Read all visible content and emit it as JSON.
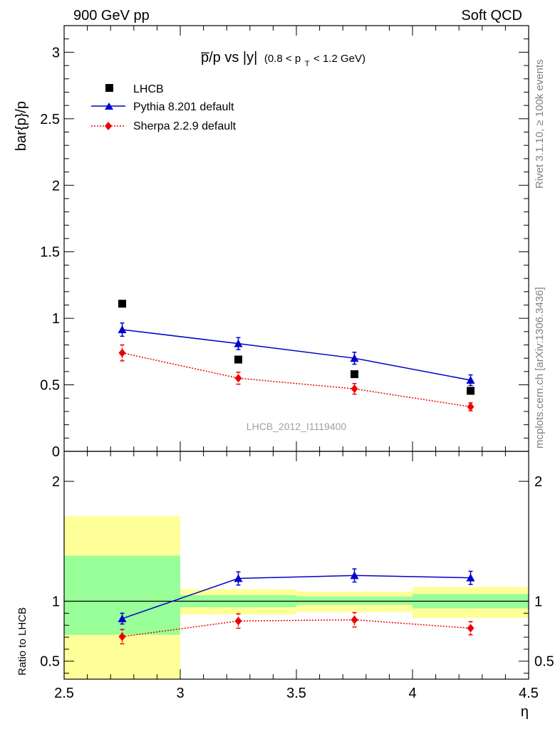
{
  "header": {
    "left": "900 GeV pp",
    "right": "Soft QCD"
  },
  "side": {
    "rivet": "Rivet 3.1.10, ≥ 100k events",
    "mcplots": "mcplots.cern.ch [arXiv:1306.3436]"
  },
  "chart_data": [
    {
      "type": "scatter",
      "title": "p̅/p vs |y|",
      "title_main": "p̅/p vs |y|",
      "title_cut_pre": "(0.8 < p",
      "title_cut_sub": "T",
      "title_cut_post": " < 1.2 GeV)",
      "ylabel": "bar{p}/p",
      "xlabel": "η",
      "xlim": [
        2.5,
        4.5
      ],
      "ylim": [
        0,
        3.2
      ],
      "yticks": [
        {
          "v": 0.5,
          "t": "0.5"
        },
        {
          "v": 1,
          "t": "1"
        },
        {
          "v": 1.5,
          "t": "1.5"
        },
        {
          "v": 2,
          "t": "2"
        },
        {
          "v": 2.5,
          "t": "2.5"
        },
        {
          "v": 3,
          "t": "3"
        },
        {
          "v": 0,
          "t": "0"
        }
      ],
      "watermark": "LHCB_2012_I1119400",
      "legend_position": "top-left",
      "series": [
        {
          "name": "LHCB",
          "color": "#000000",
          "marker": "square",
          "line": "none",
          "x": [
            2.75,
            3.25,
            3.75,
            4.25
          ],
          "y": [
            1.11,
            0.69,
            0.58,
            0.455
          ],
          "err": [
            0.01,
            0.01,
            0.01,
            0.01
          ]
        },
        {
          "name": "Pythia 8.201 default",
          "color": "#0000cc",
          "marker": "triangle",
          "line": "solid",
          "x": [
            2.75,
            3.25,
            3.75,
            4.25
          ],
          "y": [
            0.915,
            0.81,
            0.7,
            0.535
          ],
          "err": [
            0.05,
            0.045,
            0.045,
            0.04
          ]
        },
        {
          "name": "Sherpa 2.2.9 default",
          "color": "#ee0000",
          "marker": "diamond",
          "line": "dotted",
          "x": [
            2.75,
            3.25,
            3.75,
            4.25
          ],
          "y": [
            0.74,
            0.55,
            0.47,
            0.335
          ],
          "err": [
            0.06,
            0.045,
            0.04,
            0.03
          ]
        }
      ]
    },
    {
      "type": "scatter",
      "ylabel": "Ratio to LHCB",
      "xlabel": "η",
      "xlim": [
        2.5,
        4.5
      ],
      "ylim": [
        0.35,
        2.25
      ],
      "xticks": [
        {
          "v": 2.5,
          "t": "2.5"
        },
        {
          "v": 3,
          "t": "3"
        },
        {
          "v": 3.5,
          "t": "3.5"
        },
        {
          "v": 4,
          "t": "4"
        },
        {
          "v": 4.5,
          "t": "4.5"
        }
      ],
      "yticks": [
        {
          "v": 0.5,
          "t": "0.5"
        },
        {
          "v": 1,
          "t": "1"
        },
        {
          "v": 2,
          "t": "2"
        }
      ],
      "bands": [
        {
          "x0": 2.5,
          "x1": 3.0,
          "y_lo": 0.72,
          "y_hi": 1.38,
          "y2_lo": 0.35,
          "y2_hi": 1.71
        },
        {
          "x0": 3.0,
          "x1": 3.5,
          "y_lo": 0.95,
          "y_hi": 1.05,
          "y2_lo": 0.89,
          "y2_hi": 1.1
        },
        {
          "x0": 3.5,
          "x1": 4.0,
          "y_lo": 0.97,
          "y_hi": 1.04,
          "y2_lo": 0.91,
          "y2_hi": 1.08
        },
        {
          "x0": 4.0,
          "x1": 4.5,
          "y_lo": 0.94,
          "y_hi": 1.06,
          "y2_lo": 0.86,
          "y2_hi": 1.12
        }
      ],
      "band_colors": {
        "inner": "#99ff99",
        "outer": "#ffff99"
      },
      "series": [
        {
          "name": "Pythia 8.201 default",
          "color": "#0000cc",
          "marker": "triangle",
          "line": "solid",
          "x": [
            2.75,
            3.25,
            3.75,
            4.25
          ],
          "y": [
            0.855,
            1.19,
            1.215,
            1.195
          ],
          "err": [
            0.045,
            0.055,
            0.055,
            0.055
          ]
        },
        {
          "name": "Sherpa 2.2.9 default",
          "color": "#ee0000",
          "marker": "diamond",
          "line": "dotted",
          "x": [
            2.75,
            3.25,
            3.75,
            4.25
          ],
          "y": [
            0.705,
            0.835,
            0.845,
            0.775
          ],
          "err": [
            0.06,
            0.06,
            0.06,
            0.055
          ]
        }
      ]
    }
  ]
}
